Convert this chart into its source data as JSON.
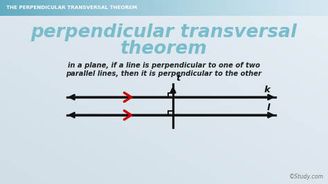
{
  "bg_color_top_right": "#dde8ee",
  "bg_color_bottom_left": "#c5d4dc",
  "header_bg_left": "#6aadbd",
  "header_bg_right": "#d0e4ec",
  "header_text": "THE PERPENDICULAR TRANSVERSAL THEOREM",
  "header_text_color": "#ffffff",
  "title_line1": "perpendicular transversal",
  "title_line2": "theorem",
  "title_color": "#7bbccc",
  "body_text_line1": "in a plane, if a line is perpendicular to one of two",
  "body_text_line2": "parallel lines, then it is perpendicular to the other",
  "body_text_color": "#222222",
  "watermark": "©Study.com",
  "line_color": "#111111",
  "tick_color": "#cc0000",
  "label_k": "k",
  "label_l": "l",
  "label_t": "t",
  "fig_w": 4.74,
  "fig_h": 2.67,
  "dpi": 100
}
